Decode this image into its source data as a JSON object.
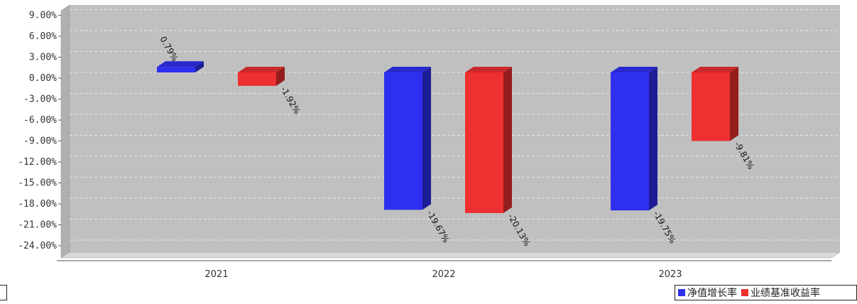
{
  "chart_data": {
    "type": "bar",
    "categories": [
      "2021",
      "2022",
      "2023"
    ],
    "series": [
      {
        "name": "净值增长率",
        "values": [
          0.79,
          -19.67,
          -19.75
        ],
        "labels": [
          "0.79%",
          "-19.67%",
          "-19.75%"
        ],
        "color": "#2f2ff0"
      },
      {
        "name": "业绩基准收益率",
        "values": [
          -1.92,
          -20.13,
          -9.81
        ],
        "labels": [
          "-1.92%",
          "-20.13%",
          "-9.81%"
        ],
        "color": "#ee3030"
      }
    ],
    "y_ticks": [
      "9.00%",
      "6.00%",
      "3.00%",
      "0.00%",
      "-3.00%",
      "-6.00%",
      "-9.00%",
      "-12.00%",
      "-15.00%",
      "-18.00%",
      "-21.00%",
      "-24.00%"
    ],
    "ylim": [
      -26,
      9
    ],
    "grid": true,
    "style": "3d",
    "legend_position": "bottom-right",
    "colors": {
      "plot_background": "#c0c0c0",
      "grid": "#e6e6e6",
      "floor": "#d8d8d8"
    }
  },
  "legend": {
    "items": [
      {
        "label": "净值增长率",
        "color": "#2f2ff0"
      },
      {
        "label": "业绩基准收益率",
        "color": "#ee3030"
      }
    ]
  }
}
